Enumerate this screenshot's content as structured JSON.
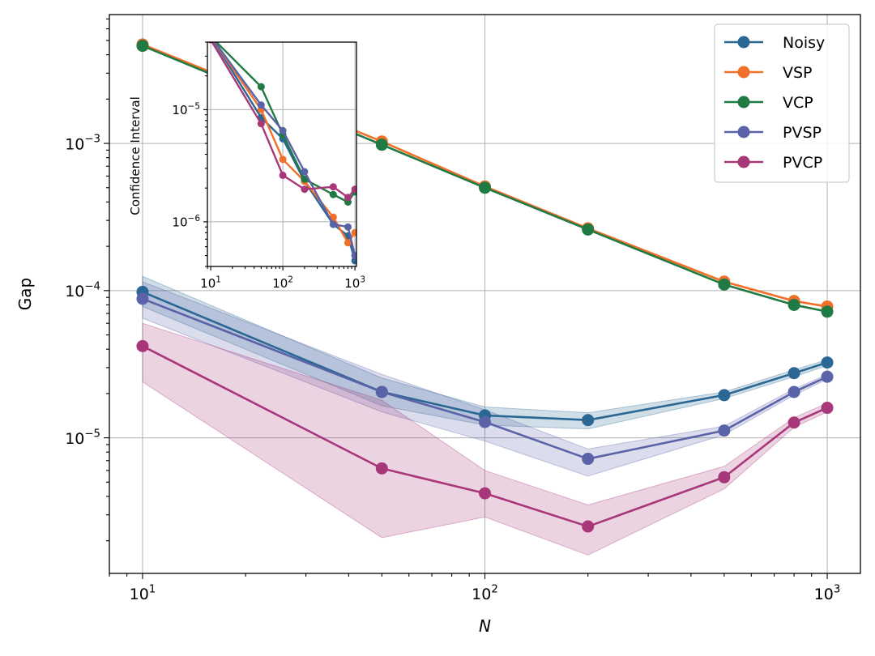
{
  "chart_data": [
    {
      "type": "line",
      "scale": "log-log",
      "title": "",
      "xlabel": "N",
      "ylabel": "Gap",
      "xlim": [
        8,
        1250
      ],
      "ylim": [
        1.2e-06,
        0.0075
      ],
      "grid": true,
      "legend_position": "top-right",
      "x": [
        10,
        50,
        100,
        200,
        500,
        800,
        1000
      ],
      "x_tick_labels": [
        {
          "base": "10",
          "exp": "1"
        },
        {
          "base": "10",
          "exp": "2"
        },
        {
          "base": "10",
          "exp": "3"
        }
      ],
      "y_tick_labels": [
        {
          "base": "10",
          "exp": "−5"
        },
        {
          "base": "10",
          "exp": "−4"
        },
        {
          "base": "10",
          "exp": "−3"
        }
      ],
      "series": [
        {
          "name": "Noisy",
          "color": "#2a6794",
          "values": [
            9.8e-05,
            2.05e-05,
            1.42e-05,
            1.32e-05,
            1.95e-05,
            2.75e-05,
            3.25e-05
          ],
          "band_lower": [
            7.8e-05,
            1.65e-05,
            1.22e-05,
            1.15e-05,
            1.85e-05,
            2.6e-05,
            3.1e-05
          ],
          "band_upper": [
            0.000125,
            2.55e-05,
            1.62e-05,
            1.48e-05,
            2.05e-05,
            2.9e-05,
            3.4e-05
          ]
        },
        {
          "name": "VSP",
          "color": "#f07029",
          "values": [
            0.0047,
            0.00103,
            0.00051,
            0.000265,
            0.000115,
            8.5e-05,
            7.8e-05
          ]
        },
        {
          "name": "VCP",
          "color": "#1f7a43",
          "values": [
            0.0046,
            0.00098,
            0.0005,
            0.00026,
            0.00011,
            8e-05,
            7.2e-05
          ]
        },
        {
          "name": "PVSP",
          "color": "#5a62a8",
          "values": [
            8.8e-05,
            2.05e-05,
            1.28e-05,
            7.2e-06,
            1.12e-05,
            2.05e-05,
            2.6e-05
          ],
          "band_lower": [
            6.5e-05,
            1.5e-05,
            9.5e-06,
            5.5e-06,
            1.05e-05,
            1.95e-05,
            2.5e-05
          ],
          "band_upper": [
            0.000115,
            2.7e-05,
            1.55e-05,
            8.4e-06,
            1.2e-05,
            2.15e-05,
            2.7e-05
          ]
        },
        {
          "name": "PVCP",
          "color": "#a73779",
          "values": [
            4.2e-05,
            6.2e-06,
            4.2e-06,
            2.5e-06,
            5.4e-06,
            1.27e-05,
            1.6e-05
          ],
          "band_lower": [
            2.4e-05,
            2.1e-06,
            2.9e-06,
            1.6e-06,
            4.5e-06,
            1.18e-05,
            1.5e-05
          ],
          "band_upper": [
            6e-05,
            1.8e-05,
            6e-06,
            3.5e-06,
            6.4e-06,
            1.37e-05,
            1.72e-05
          ]
        }
      ]
    },
    {
      "type": "line",
      "scale": "log-log",
      "title": "",
      "xlabel": "",
      "ylabel": "Confidence Interval",
      "xlim": [
        9,
        1050
      ],
      "ylim": [
        4e-07,
        4e-05
      ],
      "grid": true,
      "x": [
        10,
        50,
        100,
        200,
        500,
        800,
        1000
      ],
      "x_tick_labels": [
        {
          "base": "10",
          "exp": "1"
        },
        {
          "base": "10",
          "exp": "2"
        },
        {
          "base": "10",
          "exp": "3"
        }
      ],
      "y_tick_labels": [
        {
          "base": "10",
          "exp": "−6"
        },
        {
          "base": "10",
          "exp": "−5"
        }
      ],
      "series": [
        {
          "name": "Noisy",
          "color": "#2a6794",
          "values": [
            4.5e-05,
            8.5e-06,
            5.5e-06,
            2.3e-06,
            9.5e-07,
            7.5e-07,
            4.5e-07
          ]
        },
        {
          "name": "VSP",
          "color": "#f07029",
          "values": [
            4.5e-05,
            1e-05,
            3.6e-06,
            2.3e-06,
            1.1e-06,
            6.5e-07,
            8e-07
          ]
        },
        {
          "name": "VCP",
          "color": "#1f7a43",
          "values": [
            4.5e-05,
            1.6e-05,
            6e-06,
            2.4e-06,
            1.75e-06,
            1.5e-06,
            1.85e-06
          ]
        },
        {
          "name": "PVSP",
          "color": "#5a62a8",
          "values": [
            4.5e-05,
            1.1e-05,
            6.5e-06,
            2.8e-06,
            9.5e-07,
            9e-07,
            5e-07
          ]
        },
        {
          "name": "PVCP",
          "color": "#a73779",
          "values": [
            4.2e-05,
            7.5e-06,
            2.6e-06,
            1.95e-06,
            2.05e-06,
            1.65e-06,
            1.95e-06
          ]
        }
      ]
    }
  ]
}
